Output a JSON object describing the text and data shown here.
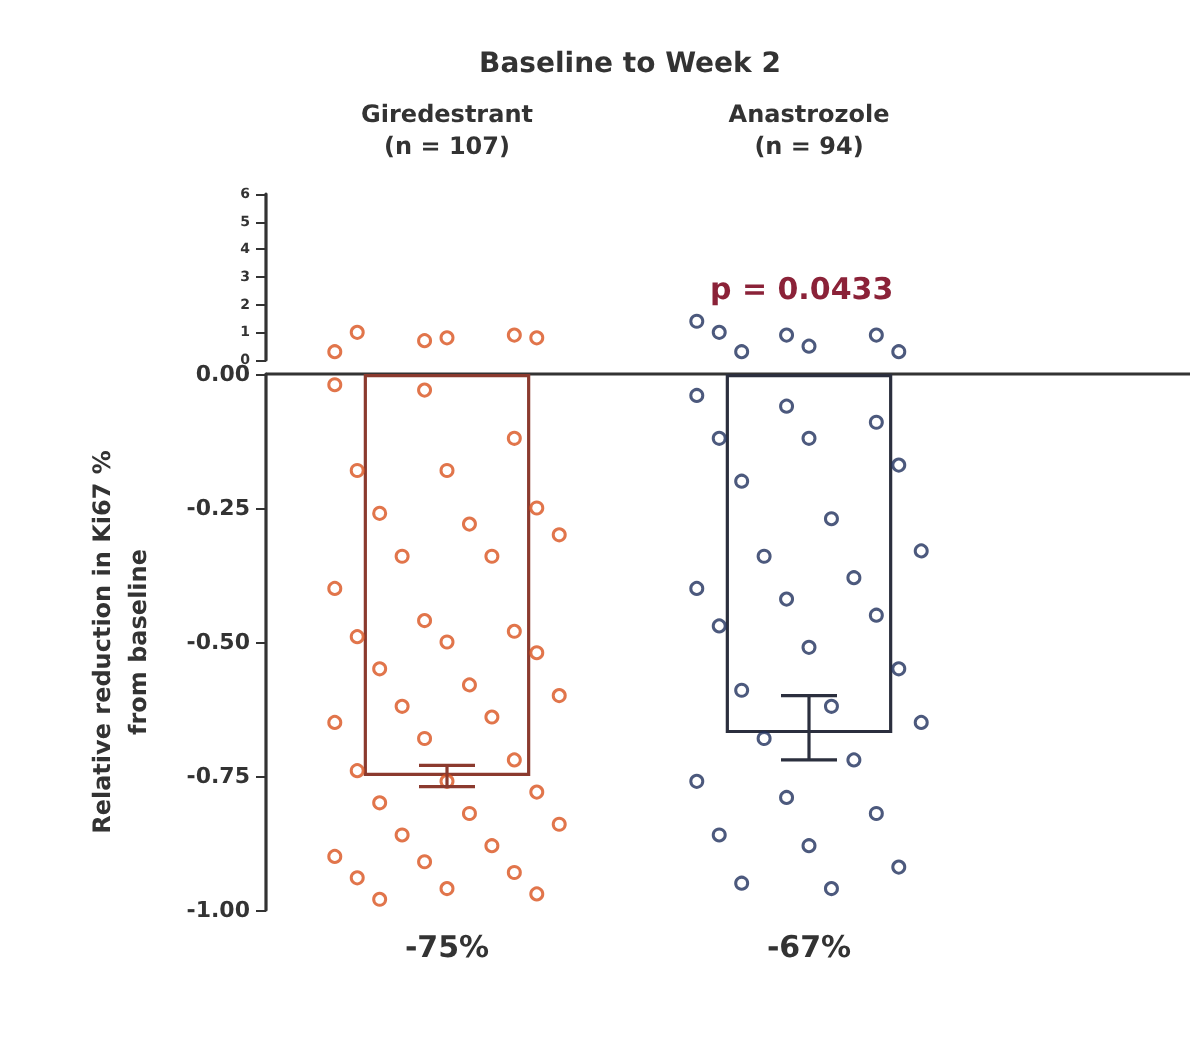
{
  "chart_data": [
    {
      "type": "scatter",
      "title": "Baseline to Week 2",
      "categories": [
        "Giredestrant\n(n = 107)",
        "Anastrozole\n(n = 94)"
      ],
      "ylim": [
        0,
        6
      ],
      "yticks": [
        0,
        1,
        2,
        3,
        4,
        5,
        6
      ],
      "annotations": [
        "p = 0.0433"
      ],
      "series": [
        {
          "x": [
            "Giredestrant\n(n = 107)",
            "Giredestrant\n(n = 107)",
            "Giredestrant\n(n = 107)",
            "Giredestrant\n(n = 107)",
            "Giredestrant\n(n = 107)",
            "Giredestrant\n(n = 107)"
          ],
          "color": "#d9531e",
          "values": [
            0.3,
            0.7,
            0.9,
            1.0,
            0.8,
            0.8
          ]
        },
        {
          "x": [
            "Anastrozole\n(n = 94)",
            "Anastrozole\n(n = 94)",
            "Anastrozole\n(n = 94)",
            "Anastrozole\n(n = 94)",
            "Anastrozole\n(n = 94)",
            "Anastrozole\n(n = 94)",
            "Anastrozole\n(n = 94)"
          ],
          "color": "#1f2f5c",
          "values": [
            1.4,
            0.9,
            0.9,
            1.0,
            0.5,
            0.3,
            0.3
          ]
        }
      ]
    },
    {
      "type": "bar",
      "ylabel": "Relative reduction in Ki67 %\nfrom baseline",
      "categories": [
        "Giredestrant\n(n = 107)",
        "Anastrozole\n(n = 94)"
      ],
      "ylim": [
        -1,
        0
      ],
      "yticks": [
        {
          "value": 0,
          "label": "0.00"
        },
        {
          "value": -0.25,
          "label": "-0.25"
        },
        {
          "value": -0.5,
          "label": "-0.50"
        },
        {
          "value": -0.75,
          "label": "-0.75"
        },
        {
          "value": -1,
          "label": "-1.00"
        }
      ],
      "tick_labels": "y",
      "series": [
        {
          "type": "bar",
          "values": [
            -0.75,
            -0.67
          ],
          "colors": [
            "#8b3a2e",
            "#2b2f3e"
          ],
          "errors": [
            [
              -0.77,
              -0.73
            ],
            [
              -0.72,
              -0.6
            ]
          ],
          "value_labels": [
            "-75%",
            "-67%"
          ]
        },
        {
          "type": "scatter",
          "color": "#d9531e",
          "x": [
            "Giredestrant\n(n = 107)",
            "Giredestrant\n(n = 107)",
            "Giredestrant\n(n = 107)",
            "Giredestrant\n(n = 107)",
            "Giredestrant\n(n = 107)",
            "Giredestrant\n(n = 107)",
            "Giredestrant\n(n = 107)",
            "Giredestrant\n(n = 107)",
            "Giredestrant\n(n = 107)",
            "Giredestrant\n(n = 107)",
            "Giredestrant\n(n = 107)",
            "Giredestrant\n(n = 107)",
            "Giredestrant\n(n = 107)",
            "Giredestrant\n(n = 107)",
            "Giredestrant\n(n = 107)",
            "Giredestrant\n(n = 107)",
            "Giredestrant\n(n = 107)",
            "Giredestrant\n(n = 107)",
            "Giredestrant\n(n = 107)",
            "Giredestrant\n(n = 107)",
            "Giredestrant\n(n = 107)",
            "Giredestrant\n(n = 107)",
            "Giredestrant\n(n = 107)",
            "Giredestrant\n(n = 107)",
            "Giredestrant\n(n = 107)",
            "Giredestrant\n(n = 107)",
            "Giredestrant\n(n = 107)",
            "Giredestrant\n(n = 107)",
            "Giredestrant\n(n = 107)",
            "Giredestrant\n(n = 107)",
            "Giredestrant\n(n = 107)",
            "Giredestrant\n(n = 107)",
            "Giredestrant\n(n = 107)",
            "Giredestrant\n(n = 107)",
            "Giredestrant\n(n = 107)",
            "Giredestrant\n(n = 107)",
            "Giredestrant\n(n = 107)",
            "Giredestrant\n(n = 107)",
            "Giredestrant\n(n = 107)",
            "Giredestrant\n(n = 107)"
          ],
          "values": [
            -0.02,
            -0.03,
            -0.12,
            -0.18,
            -0.18,
            -0.25,
            -0.26,
            -0.28,
            -0.3,
            -0.34,
            -0.34,
            -0.4,
            -0.46,
            -0.48,
            -0.49,
            -0.5,
            -0.52,
            -0.55,
            -0.58,
            -0.6,
            -0.62,
            -0.64,
            -0.65,
            -0.68,
            -0.72,
            -0.74,
            -0.76,
            -0.78,
            -0.8,
            -0.82,
            -0.84,
            -0.86,
            -0.88,
            -0.9,
            -0.91,
            -0.93,
            -0.94,
            -0.96,
            -0.97,
            -0.98
          ]
        },
        {
          "type": "scatter",
          "color": "#1f2f5c",
          "x": [
            "Anastrozole\n(n = 94)",
            "Anastrozole\n(n = 94)",
            "Anastrozole\n(n = 94)",
            "Anastrozole\n(n = 94)",
            "Anastrozole\n(n = 94)",
            "Anastrozole\n(n = 94)",
            "Anastrozole\n(n = 94)",
            "Anastrozole\n(n = 94)",
            "Anastrozole\n(n = 94)",
            "Anastrozole\n(n = 94)",
            "Anastrozole\n(n = 94)",
            "Anastrozole\n(n = 94)",
            "Anastrozole\n(n = 94)",
            "Anastrozole\n(n = 94)",
            "Anastrozole\n(n = 94)",
            "Anastrozole\n(n = 94)",
            "Anastrozole\n(n = 94)",
            "Anastrozole\n(n = 94)",
            "Anastrozole\n(n = 94)",
            "Anastrozole\n(n = 94)",
            "Anastrozole\n(n = 94)",
            "Anastrozole\n(n = 94)",
            "Anastrozole\n(n = 94)",
            "Anastrozole\n(n = 94)",
            "Anastrozole\n(n = 94)",
            "Anastrozole\n(n = 94)",
            "Anastrozole\n(n = 94)",
            "Anastrozole\n(n = 94)",
            "Anastrozole\n(n = 94)",
            "Anastrozole\n(n = 94)"
          ],
          "values": [
            -0.04,
            -0.06,
            -0.09,
            -0.12,
            -0.12,
            -0.17,
            -0.2,
            -0.27,
            -0.33,
            -0.34,
            -0.38,
            -0.4,
            -0.42,
            -0.45,
            -0.47,
            -0.51,
            -0.55,
            -0.59,
            -0.62,
            -0.65,
            -0.68,
            -0.72,
            -0.76,
            -0.79,
            -0.82,
            -0.86,
            -0.88,
            -0.92,
            -0.95,
            -0.96
          ]
        }
      ]
    }
  ]
}
